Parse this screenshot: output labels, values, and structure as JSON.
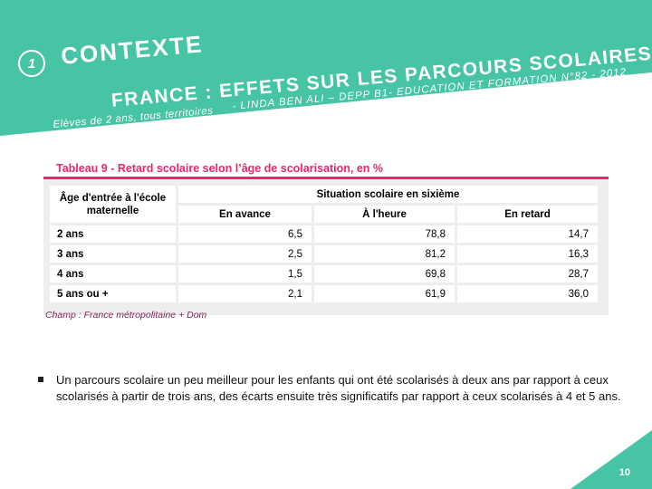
{
  "slide": {
    "number_badge": "1",
    "section_title": "CONTEXTE",
    "heading_prefix": "FRANCE : EFFETS SUR LES PARCOURS SCOLAIRES",
    "subheading": "- LINDA BEN ALI – DEPP B1- EDUCATION ET FORMATION N°82 - 2012",
    "subheading2": "Elèves de 2 ans, tous territoires",
    "page_number": "10"
  },
  "table": {
    "title": "Tableau 9 - Retard scolaire selon l’âge de scolarisation, en %",
    "header_age": "Âge d'entrée à l'école maternelle",
    "header_situation": "Situation scolaire en sixième",
    "columns": [
      "En avance",
      "À l'heure",
      "En retard"
    ],
    "rows": [
      {
        "label": "2 ans",
        "values": [
          "6,5",
          "78,8",
          "14,7"
        ]
      },
      {
        "label": "3 ans",
        "values": [
          "2,5",
          "81,2",
          "16,3"
        ]
      },
      {
        "label": "4 ans",
        "values": [
          "1,5",
          "69,8",
          "28,7"
        ]
      },
      {
        "label": "5 ans ou +",
        "values": [
          "2,1",
          "61,9",
          "36,0"
        ]
      }
    ],
    "source": "Champ : France métropolitaine + Dom"
  },
  "bullet": {
    "text": "Un parcours scolaire un peu meilleur pour  les enfants qui ont été scolarisés à deux ans par rapport à ceux scolarisés à partir de trois ans, des écarts  ensuite très significatifs par rapport à ceux scolarisés à 4 et 5 ans."
  },
  "colors": {
    "teal": "#47c3a6",
    "pink": "#e8266e",
    "source": "#7a1f56"
  }
}
